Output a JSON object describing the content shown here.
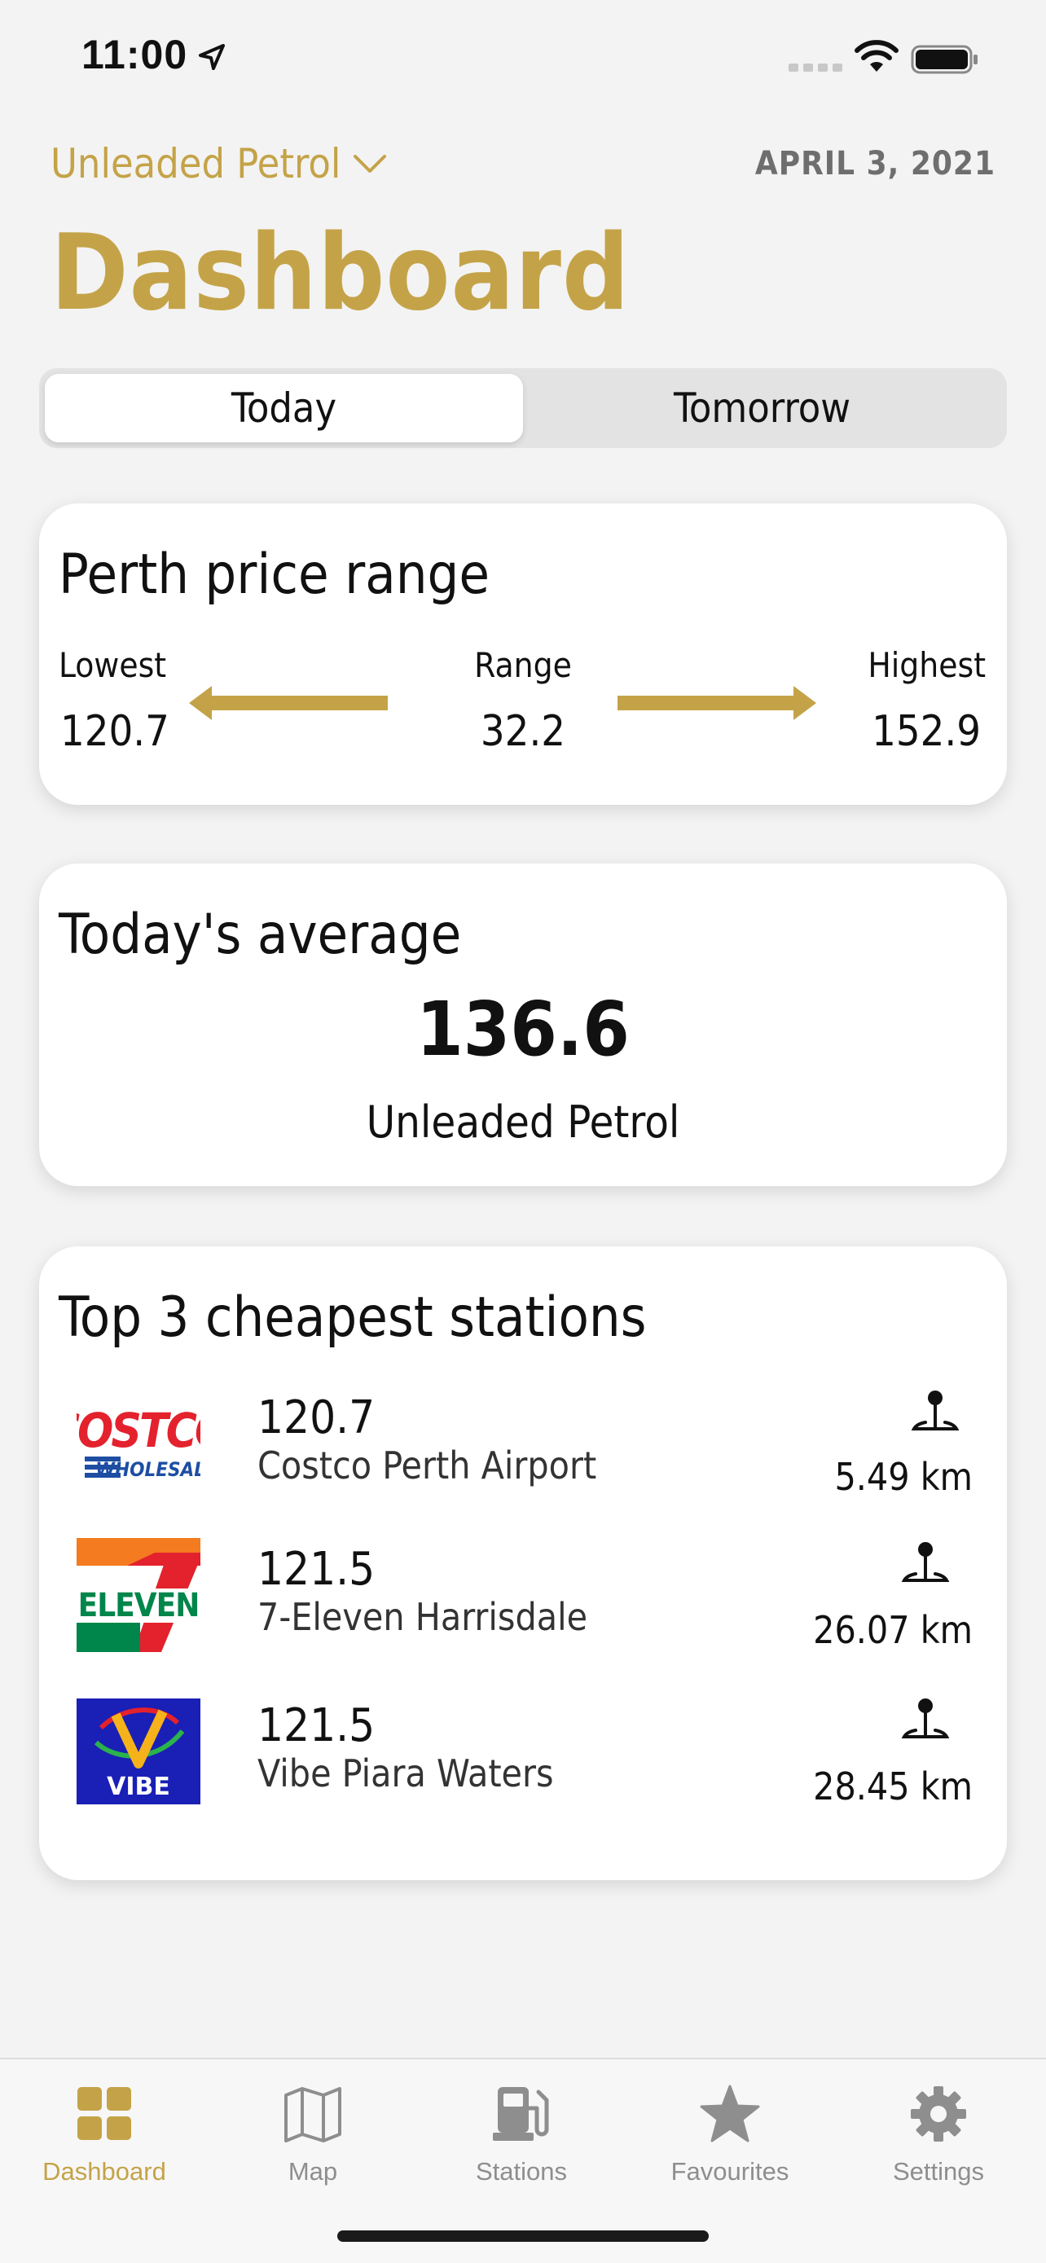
{
  "status_bar": {
    "time": "11:00"
  },
  "header": {
    "fuel_type": "Unleaded Petrol",
    "date": "APRIL 3, 2021",
    "title": "Dashboard"
  },
  "segments": [
    {
      "label": "Today",
      "selected": true
    },
    {
      "label": "Tomorrow",
      "selected": false
    }
  ],
  "price_range": {
    "title": "Perth price range",
    "lowest_label": "Lowest",
    "lowest_value": "120.7",
    "range_label": "Range",
    "range_value": "32.2",
    "highest_label": "Highest",
    "highest_value": "152.9",
    "accent_color": "#c4a348"
  },
  "average": {
    "title": "Today's average",
    "value": "136.6",
    "fuel_type": "Unleaded Petrol"
  },
  "stations": {
    "title": "Top 3 cheapest stations",
    "items": [
      {
        "logo": "costco-logo",
        "price": "120.7",
        "name": "Costco Perth Airport",
        "distance": "5.49 km"
      },
      {
        "logo": "7-eleven-logo",
        "price": "121.5",
        "name": "7-Eleven Harrisdale",
        "distance": "26.07 km"
      },
      {
        "logo": "vibe-logo",
        "price": "121.5",
        "name": "Vibe Piara Waters",
        "distance": "28.45 km"
      }
    ]
  },
  "tab_bar": {
    "items": [
      {
        "label": "Dashboard",
        "icon": "grid-icon",
        "active": true
      },
      {
        "label": "Map",
        "icon": "map-icon",
        "active": false
      },
      {
        "label": "Stations",
        "icon": "fuel-pump-icon",
        "active": false
      },
      {
        "label": "Favourites",
        "icon": "star-icon",
        "active": false
      },
      {
        "label": "Settings",
        "icon": "gear-icon",
        "active": false
      }
    ],
    "active_color": "#c4a348",
    "inactive_color": "#8e8e8e"
  }
}
